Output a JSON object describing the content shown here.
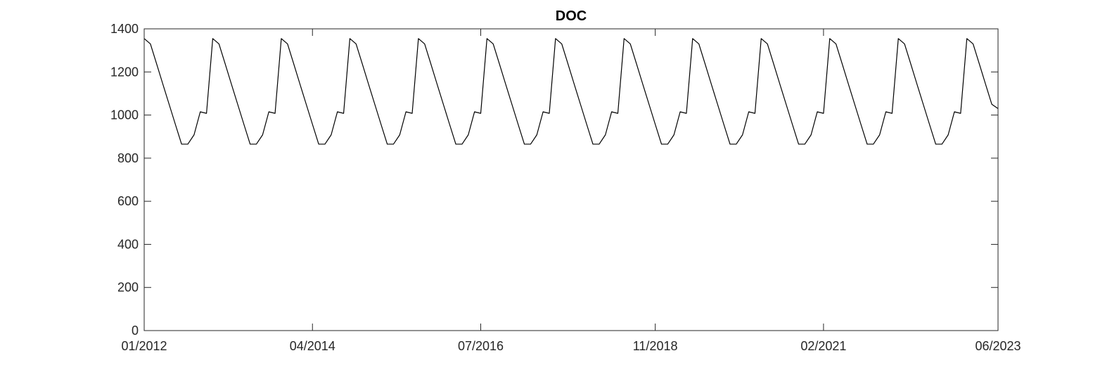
{
  "chart_data": {
    "type": "line",
    "title": "DOC",
    "xlabel": "",
    "ylabel": "",
    "x_range": [
      "2012-01",
      "2023-06"
    ],
    "ylim": [
      0,
      1400
    ],
    "yticks": [
      0,
      200,
      400,
      600,
      800,
      1000,
      1200,
      1400
    ],
    "xticks": [
      {
        "date": "2012-01",
        "label": "01/2012"
      },
      {
        "date": "2014-04",
        "label": "04/2014"
      },
      {
        "date": "2016-07",
        "label": "07/2016"
      },
      {
        "date": "2018-11",
        "label": "11/2018"
      },
      {
        "date": "2021-02",
        "label": "02/2021"
      },
      {
        "date": "2023-06",
        "label": "06/2023"
      }
    ],
    "grid": false,
    "line_color": "#000000",
    "series": [
      {
        "x": [
          "2012-01",
          "2012-02",
          "2012-03",
          "2012-04",
          "2012-05",
          "2012-06",
          "2012-07",
          "2012-08",
          "2012-09",
          "2012-10",
          "2012-11",
          "2012-12",
          "2013-01",
          "2013-02",
          "2013-03",
          "2013-04",
          "2013-05",
          "2013-06",
          "2013-07",
          "2013-08",
          "2013-09",
          "2013-10",
          "2013-11",
          "2013-12",
          "2014-01",
          "2014-02",
          "2014-03",
          "2014-04",
          "2014-05",
          "2014-06",
          "2014-07",
          "2014-08",
          "2014-09",
          "2014-10",
          "2014-11",
          "2014-12",
          "2015-01",
          "2015-02",
          "2015-03",
          "2015-04",
          "2015-05",
          "2015-06",
          "2015-07",
          "2015-08",
          "2015-09",
          "2015-10",
          "2015-11",
          "2015-12",
          "2016-01",
          "2016-02",
          "2016-03",
          "2016-04",
          "2016-05",
          "2016-06",
          "2016-07",
          "2016-08",
          "2016-09",
          "2016-10",
          "2016-11",
          "2016-12",
          "2017-01",
          "2017-02",
          "2017-03",
          "2017-04",
          "2017-05",
          "2017-06",
          "2017-07",
          "2017-08",
          "2017-09",
          "2017-10",
          "2017-11",
          "2017-12",
          "2018-01",
          "2018-02",
          "2018-03",
          "2018-04",
          "2018-05",
          "2018-06",
          "2018-07",
          "2018-08",
          "2018-09",
          "2018-10",
          "2018-11",
          "2018-12",
          "2019-01",
          "2019-02",
          "2019-03",
          "2019-04",
          "2019-05",
          "2019-06",
          "2019-07",
          "2019-08",
          "2019-09",
          "2019-10",
          "2019-11",
          "2019-12",
          "2020-01",
          "2020-02",
          "2020-03",
          "2020-04",
          "2020-05",
          "2020-06",
          "2020-07",
          "2020-08",
          "2020-09",
          "2020-10",
          "2020-11",
          "2020-12",
          "2021-01",
          "2021-02",
          "2021-03",
          "2021-04",
          "2021-05",
          "2021-06",
          "2021-07",
          "2021-08",
          "2021-09",
          "2021-10",
          "2021-11",
          "2021-12",
          "2022-01",
          "2022-02",
          "2022-03",
          "2022-04",
          "2022-05",
          "2022-06",
          "2022-07",
          "2022-08",
          "2022-09",
          "2022-10",
          "2022-11",
          "2022-12",
          "2023-01",
          "2023-02",
          "2023-03",
          "2023-04",
          "2023-05",
          "2023-06"
        ],
        "y": [
          1355,
          1330,
          1237,
          1143,
          1050,
          957,
          865,
          865,
          908,
          1015,
          1008,
          1355,
          1330,
          1237,
          1143,
          1050,
          957,
          865,
          865,
          908,
          1015,
          1008,
          1355,
          1330,
          1237,
          1143,
          1050,
          957,
          865,
          865,
          908,
          1015,
          1008,
          1355,
          1330,
          1237,
          1143,
          1050,
          957,
          865,
          865,
          908,
          1015,
          1008,
          1355,
          1330,
          1237,
          1143,
          1050,
          957,
          865,
          865,
          908,
          1015,
          1008,
          1355,
          1330,
          1237,
          1143,
          1050,
          957,
          865,
          865,
          908,
          1015,
          1008,
          1355,
          1330,
          1237,
          1143,
          1050,
          957,
          865,
          865,
          908,
          1015,
          1008,
          1355,
          1330,
          1237,
          1143,
          1050,
          957,
          865,
          865,
          908,
          1015,
          1008,
          1355,
          1330,
          1237,
          1143,
          1050,
          957,
          865,
          865,
          908,
          1015,
          1008,
          1355,
          1330,
          1237,
          1143,
          1050,
          957,
          865,
          865,
          908,
          1015,
          1008,
          1355,
          1330,
          1237,
          1143,
          1050,
          957,
          865,
          865,
          908,
          1015,
          1008,
          1355,
          1330,
          1237,
          1143,
          1050,
          957,
          865,
          865,
          908,
          1015,
          1008,
          1355,
          1330,
          1237,
          1143,
          1050,
          1030
        ]
      }
    ]
  }
}
